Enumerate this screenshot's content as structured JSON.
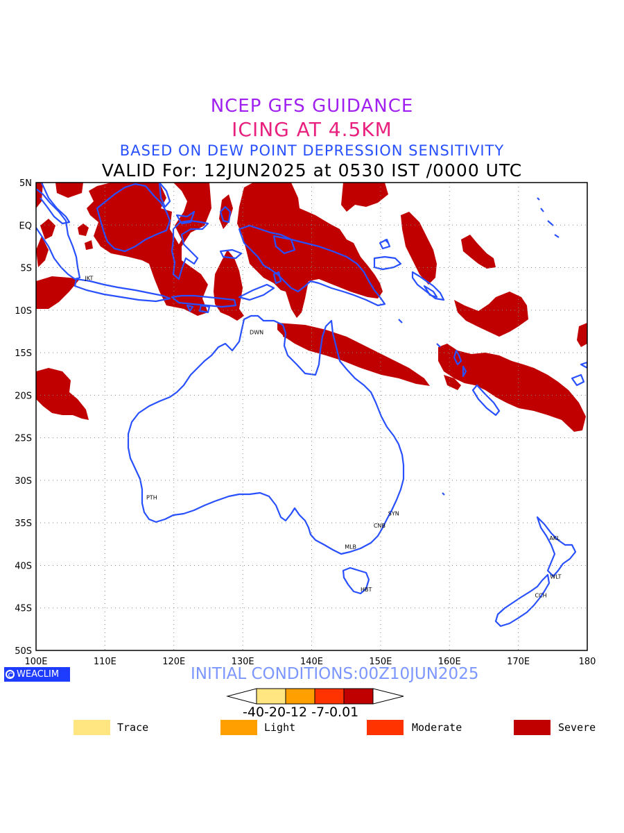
{
  "titles": {
    "line1": "NCEP GFS GUIDANCE",
    "line2": "ICING AT 4.5KM",
    "line3": "BASED ON DEW POINT DEPRESSION SENSITIVITY",
    "line4": "VALID For: 12JUN2025 at 0530 IST /0000 UTC"
  },
  "axes": {
    "lat_labels": [
      "5N",
      "EQ",
      "5S",
      "10S",
      "15S",
      "20S",
      "25S",
      "30S",
      "35S",
      "40S",
      "45S",
      "50S"
    ],
    "lon_labels": [
      "100E",
      "110E",
      "120E",
      "130E",
      "140E",
      "150E",
      "160E",
      "170E",
      "180"
    ],
    "lat_range": [
      5,
      -50
    ],
    "lon_range": [
      100,
      180
    ]
  },
  "stations": [
    {
      "code": "JKT",
      "lon": 107.3,
      "lat": -6.2
    },
    {
      "code": "DWN",
      "lon": 131.2,
      "lat": -12.6
    },
    {
      "code": "PTH",
      "lon": 116.2,
      "lat": -32.0
    },
    {
      "code": "SYN",
      "lon": 151.3,
      "lat": -33.9
    },
    {
      "code": "CNB",
      "lon": 149.2,
      "lat": -35.3
    },
    {
      "code": "MLB",
      "lon": 145.0,
      "lat": -37.8
    },
    {
      "code": "HBT",
      "lon": 147.3,
      "lat": -42.8
    },
    {
      "code": "AKL",
      "lon": 174.7,
      "lat": -36.8
    },
    {
      "code": "WLT",
      "lon": 174.8,
      "lat": -41.3
    },
    {
      "code": "CCH",
      "lon": 172.6,
      "lat": -43.5
    }
  ],
  "footer": {
    "logo": "WEACLIM",
    "initial": "INITIAL CONDITIONS:00Z10JUN2025"
  },
  "colorbar": {
    "labels": "-40-20-12 -7-0.01",
    "colors": [
      "#ffe680",
      "#ffa000",
      "#ff3300",
      "#c00000"
    ]
  },
  "legend": [
    {
      "label": "Trace",
      "color": "#ffe680"
    },
    {
      "label": "Light",
      "color": "#ffa000"
    },
    {
      "label": "Moderate",
      "color": "#ff3300"
    },
    {
      "label": "Severe",
      "color": "#c00000"
    }
  ],
  "colors": {
    "severe": "#c00000",
    "coast": "#2850ff",
    "grid": "#888888"
  }
}
